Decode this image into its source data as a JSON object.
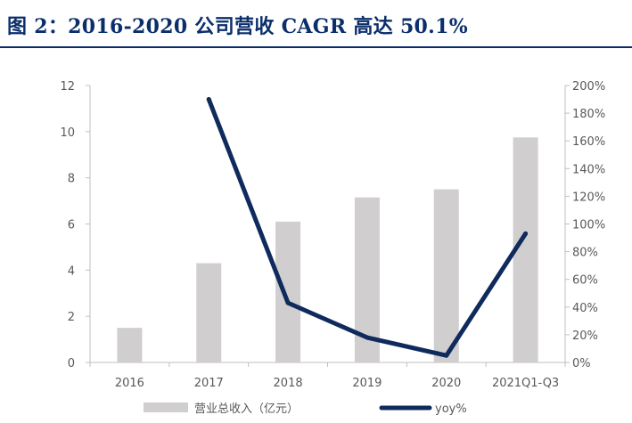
{
  "figure": {
    "title": "图 2：2016-2020 公司营收 CAGR 高达 50.1%"
  },
  "colors": {
    "title": "#0b2f6b",
    "bar": "#d0cece",
    "line": "#0f2a5c",
    "axis": "#bfbfbf",
    "text": "#595959"
  },
  "chart_data": {
    "type": "bar",
    "categories": [
      "2016",
      "2017",
      "2018",
      "2019",
      "2020",
      "2021Q1-Q3"
    ],
    "series": [
      {
        "name": "营业总收入（亿元）",
        "type": "bar",
        "axis": "left",
        "values": [
          1.5,
          4.3,
          6.1,
          7.15,
          7.5,
          9.75
        ]
      },
      {
        "name": "yoy%",
        "type": "line",
        "axis": "right",
        "values": [
          null,
          190,
          43,
          18,
          5,
          93
        ]
      }
    ],
    "y_left": {
      "min": 0,
      "max": 12,
      "ticks": [
        0,
        2,
        4,
        6,
        8,
        10,
        12
      ]
    },
    "y_right": {
      "min": 0,
      "max": 200,
      "ticks": [
        "0%",
        "20%",
        "40%",
        "60%",
        "80%",
        "100%",
        "120%",
        "140%",
        "160%",
        "180%",
        "200%"
      ]
    },
    "grid": false,
    "legend": "bottom"
  }
}
